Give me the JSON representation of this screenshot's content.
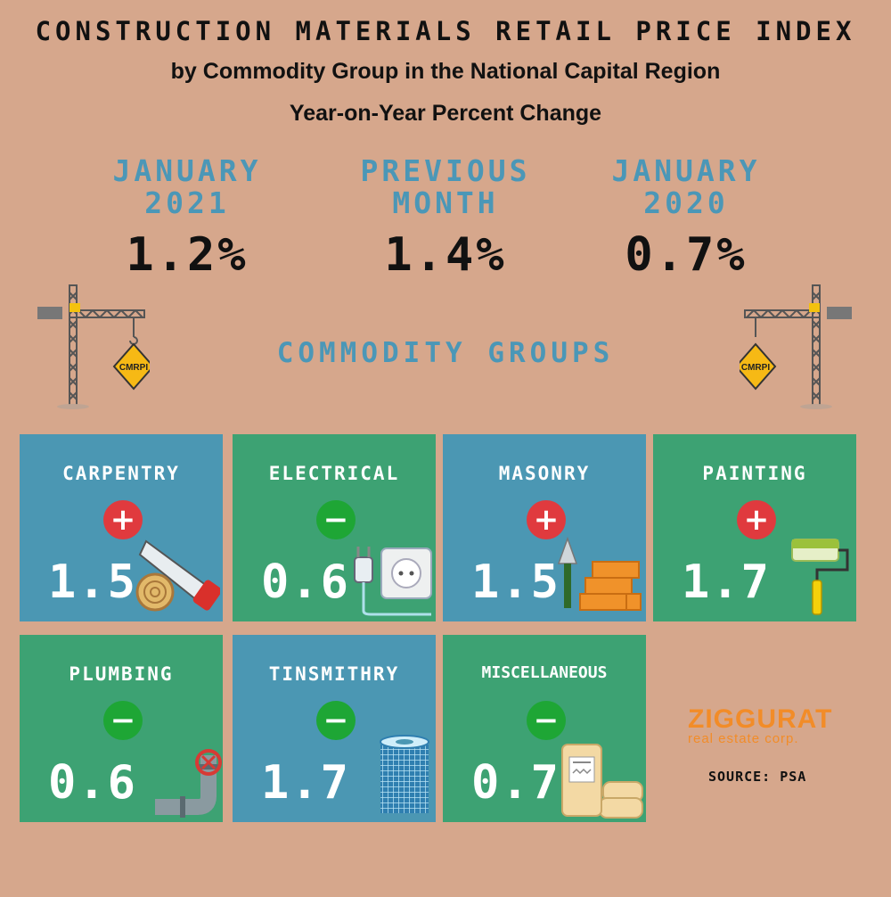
{
  "header": {
    "title": "CONSTRUCTION MATERIALS RETAIL PRICE INDEX",
    "subtitle1": "by Commodity Group in the National Capital Region",
    "subtitle2": "Year-on-Year Percent Change"
  },
  "stats": [
    {
      "label1": "JANUARY",
      "label2": "2021",
      "value": "1.2%"
    },
    {
      "label1": "PREVIOUS",
      "label2": "MONTH",
      "value": "1.4%"
    },
    {
      "label1": "JANUARY",
      "label2": "2020",
      "value": "0.7%"
    }
  ],
  "section_title": "COMMODITY GROUPS",
  "sign_label": "CMRPI",
  "colors": {
    "background": "#d6a78c",
    "blue_tile": "#4b97b3",
    "green_tile": "#3da273",
    "increase": "#e03a3e",
    "decrease": "#1ea635",
    "accent_text": "#4b97b7"
  },
  "groups": [
    {
      "name": "CARPENTRY",
      "direction": "increase",
      "sign": "+",
      "value": "1.5",
      "icon": "saw-and-log-icon"
    },
    {
      "name": "ELECTRICAL",
      "direction": "decrease",
      "sign": "−",
      "value": "0.6",
      "icon": "plug-and-socket-icon"
    },
    {
      "name": "MASONRY",
      "direction": "increase",
      "sign": "+",
      "value": "1.5",
      "icon": "trowel-and-bricks-icon"
    },
    {
      "name": "PAINTING",
      "direction": "increase",
      "sign": "+",
      "value": "1.7",
      "icon": "paint-roller-icon"
    },
    {
      "name": "PLUMBING",
      "direction": "decrease",
      "sign": "−",
      "value": "0.6",
      "icon": "pipe-valve-icon"
    },
    {
      "name": "TINSMITHRY",
      "direction": "decrease",
      "sign": "−",
      "value": "1.7",
      "icon": "wire-mesh-roll-icon"
    },
    {
      "name": "MISCELLANEOUS",
      "direction": "decrease",
      "sign": "−",
      "value": "0.7",
      "icon": "cement-bags-icon"
    }
  ],
  "logo": {
    "name": "ZIGGURAT",
    "tagline": "real estate corp."
  },
  "source": "SOURCE: PSA"
}
